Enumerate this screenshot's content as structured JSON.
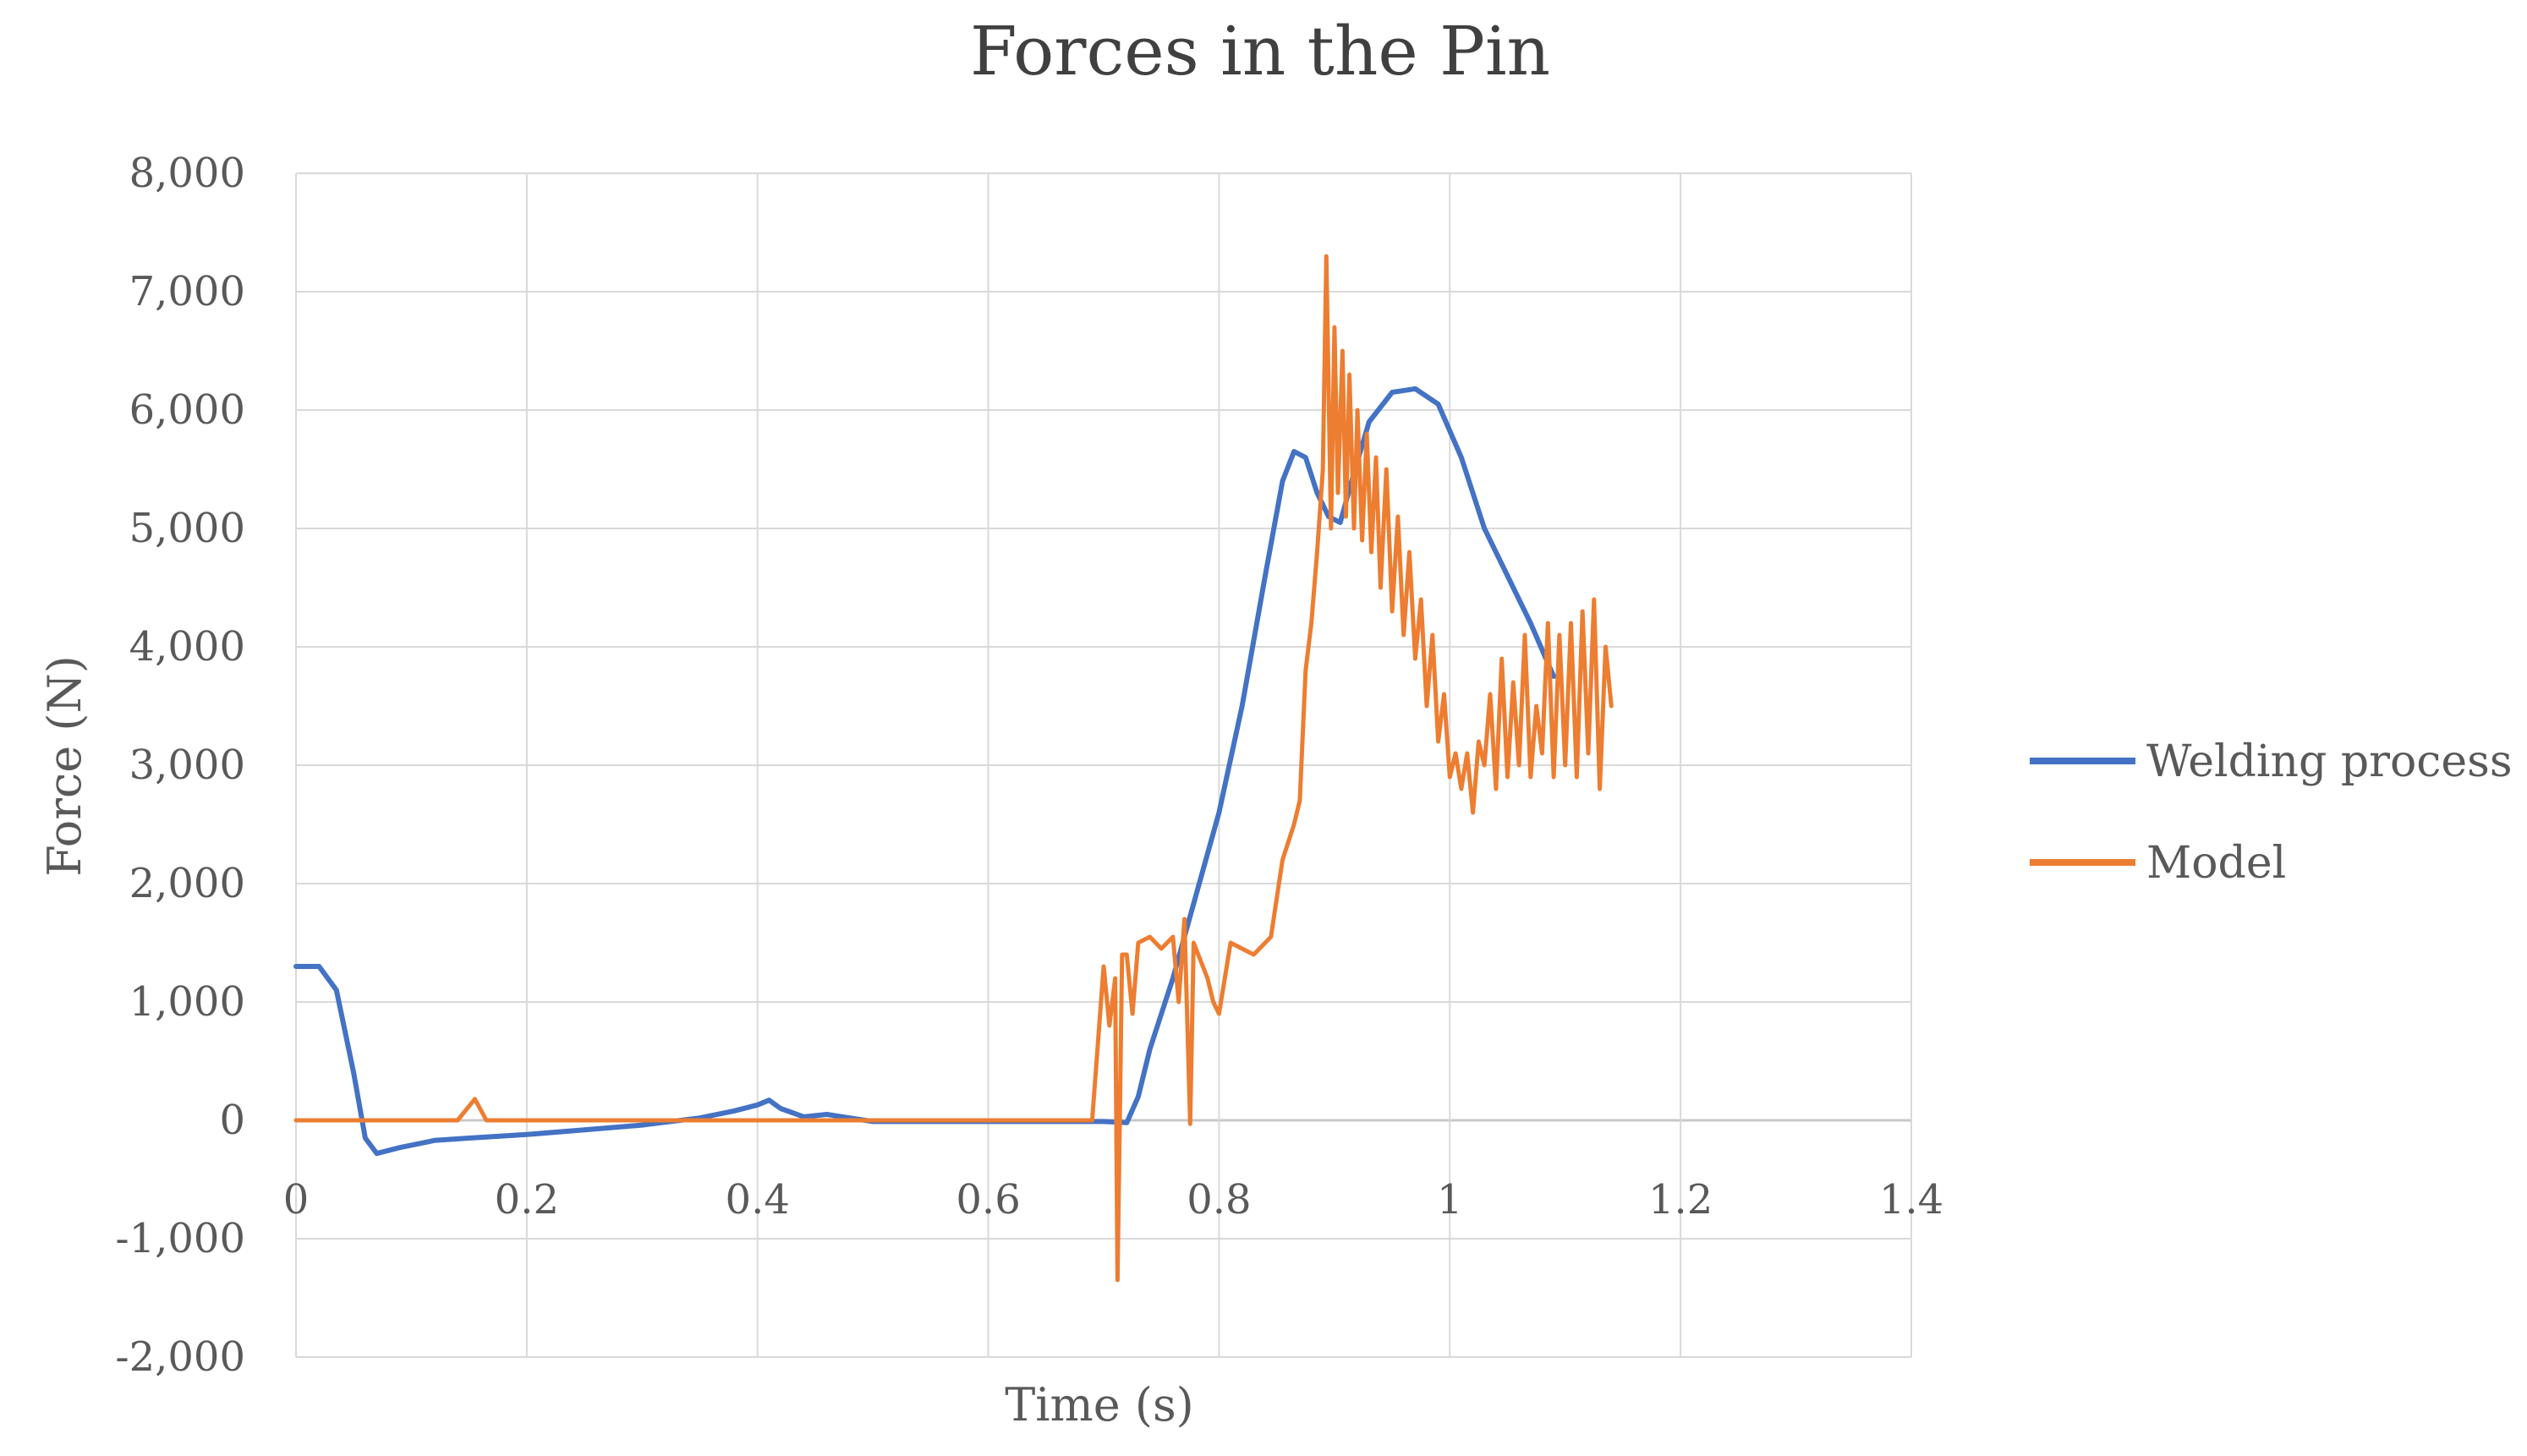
{
  "chart_data": {
    "type": "line",
    "title": "Forces in the Pin",
    "xlabel": "Time (s)",
    "ylabel": "Force (N)",
    "xlim": [
      0,
      1.4
    ],
    "ylim": [
      -2000,
      8000
    ],
    "x_ticks": [
      0,
      0.2,
      0.4,
      0.6,
      0.8,
      1,
      1.2,
      1.4
    ],
    "x_tick_labels": [
      "0",
      "0.2",
      "0.4",
      "0.6",
      "0.8",
      "1",
      "1.2",
      "1.4"
    ],
    "y_ticks": [
      -2000,
      -1000,
      0,
      1000,
      2000,
      3000,
      4000,
      5000,
      6000,
      7000,
      8000
    ],
    "y_tick_labels": [
      "-2,000",
      "-1,000",
      "0",
      "1,000",
      "2,000",
      "3,000",
      "4,000",
      "5,000",
      "6,000",
      "7,000",
      "8,000"
    ],
    "grid": true,
    "legend_position": "right",
    "series": [
      {
        "name": "Welding process",
        "color": "#4472C4",
        "points": [
          [
            0,
            1300
          ],
          [
            0.02,
            1300
          ],
          [
            0.035,
            1100
          ],
          [
            0.05,
            400
          ],
          [
            0.06,
            -150
          ],
          [
            0.07,
            -280
          ],
          [
            0.09,
            -230
          ],
          [
            0.12,
            -170
          ],
          [
            0.15,
            -150
          ],
          [
            0.2,
            -120
          ],
          [
            0.25,
            -80
          ],
          [
            0.3,
            -40
          ],
          [
            0.35,
            20
          ],
          [
            0.38,
            80
          ],
          [
            0.4,
            130
          ],
          [
            0.41,
            170
          ],
          [
            0.42,
            100
          ],
          [
            0.44,
            30
          ],
          [
            0.46,
            50
          ],
          [
            0.48,
            20
          ],
          [
            0.5,
            -10
          ],
          [
            0.6,
            -10
          ],
          [
            0.7,
            -10
          ],
          [
            0.72,
            -20
          ],
          [
            0.73,
            200
          ],
          [
            0.74,
            600
          ],
          [
            0.76,
            1200
          ],
          [
            0.78,
            1900
          ],
          [
            0.8,
            2600
          ],
          [
            0.82,
            3500
          ],
          [
            0.84,
            4600
          ],
          [
            0.855,
            5400
          ],
          [
            0.865,
            5650
          ],
          [
            0.875,
            5600
          ],
          [
            0.885,
            5300
          ],
          [
            0.895,
            5100
          ],
          [
            0.905,
            5050
          ],
          [
            0.915,
            5400
          ],
          [
            0.93,
            5900
          ],
          [
            0.95,
            6150
          ],
          [
            0.97,
            6180
          ],
          [
            0.99,
            6050
          ],
          [
            1.01,
            5600
          ],
          [
            1.03,
            5000
          ],
          [
            1.05,
            4600
          ],
          [
            1.07,
            4200
          ],
          [
            1.09,
            3750
          ]
        ]
      },
      {
        "name": "Model",
        "color": "#ED7D31",
        "points": [
          [
            0,
            0
          ],
          [
            0.14,
            0
          ],
          [
            0.155,
            180
          ],
          [
            0.165,
            0
          ],
          [
            0.69,
            0
          ],
          [
            0.7,
            1300
          ],
          [
            0.705,
            800
          ],
          [
            0.71,
            1200
          ],
          [
            0.712,
            -1350
          ],
          [
            0.716,
            1400
          ],
          [
            0.72,
            1400
          ],
          [
            0.725,
            900
          ],
          [
            0.73,
            1500
          ],
          [
            0.74,
            1550
          ],
          [
            0.75,
            1450
          ],
          [
            0.76,
            1550
          ],
          [
            0.765,
            1000
          ],
          [
            0.77,
            1700
          ],
          [
            0.775,
            -30
          ],
          [
            0.778,
            1500
          ],
          [
            0.79,
            1200
          ],
          [
            0.795,
            1000
          ],
          [
            0.8,
            900
          ],
          [
            0.81,
            1500
          ],
          [
            0.83,
            1400
          ],
          [
            0.845,
            1550
          ],
          [
            0.855,
            2200
          ],
          [
            0.865,
            2500
          ],
          [
            0.87,
            2700
          ],
          [
            0.875,
            3800
          ],
          [
            0.88,
            4200
          ],
          [
            0.885,
            4800
          ],
          [
            0.89,
            5500
          ],
          [
            0.893,
            7300
          ],
          [
            0.897,
            5000
          ],
          [
            0.9,
            6700
          ],
          [
            0.903,
            5300
          ],
          [
            0.907,
            6500
          ],
          [
            0.91,
            5100
          ],
          [
            0.913,
            6300
          ],
          [
            0.917,
            5000
          ],
          [
            0.92,
            6000
          ],
          [
            0.924,
            4900
          ],
          [
            0.928,
            5800
          ],
          [
            0.932,
            4800
          ],
          [
            0.936,
            5600
          ],
          [
            0.94,
            4500
          ],
          [
            0.945,
            5500
          ],
          [
            0.95,
            4300
          ],
          [
            0.955,
            5100
          ],
          [
            0.96,
            4100
          ],
          [
            0.965,
            4800
          ],
          [
            0.97,
            3900
          ],
          [
            0.975,
            4400
          ],
          [
            0.98,
            3500
          ],
          [
            0.985,
            4100
          ],
          [
            0.99,
            3200
          ],
          [
            0.995,
            3600
          ],
          [
            1.0,
            2900
          ],
          [
            1.005,
            3100
          ],
          [
            1.01,
            2800
          ],
          [
            1.015,
            3100
          ],
          [
            1.02,
            2600
          ],
          [
            1.025,
            3200
          ],
          [
            1.03,
            3000
          ],
          [
            1.035,
            3600
          ],
          [
            1.04,
            2800
          ],
          [
            1.045,
            3900
          ],
          [
            1.05,
            2900
          ],
          [
            1.055,
            3700
          ],
          [
            1.06,
            3000
          ],
          [
            1.065,
            4100
          ],
          [
            1.07,
            2900
          ],
          [
            1.075,
            3500
          ],
          [
            1.08,
            3100
          ],
          [
            1.085,
            4200
          ],
          [
            1.09,
            2900
          ],
          [
            1.095,
            4100
          ],
          [
            1.1,
            3000
          ],
          [
            1.105,
            4200
          ],
          [
            1.11,
            2900
          ],
          [
            1.115,
            4300
          ],
          [
            1.12,
            3100
          ],
          [
            1.125,
            4400
          ],
          [
            1.13,
            2800
          ],
          [
            1.135,
            4000
          ],
          [
            1.14,
            3500
          ]
        ]
      }
    ]
  }
}
